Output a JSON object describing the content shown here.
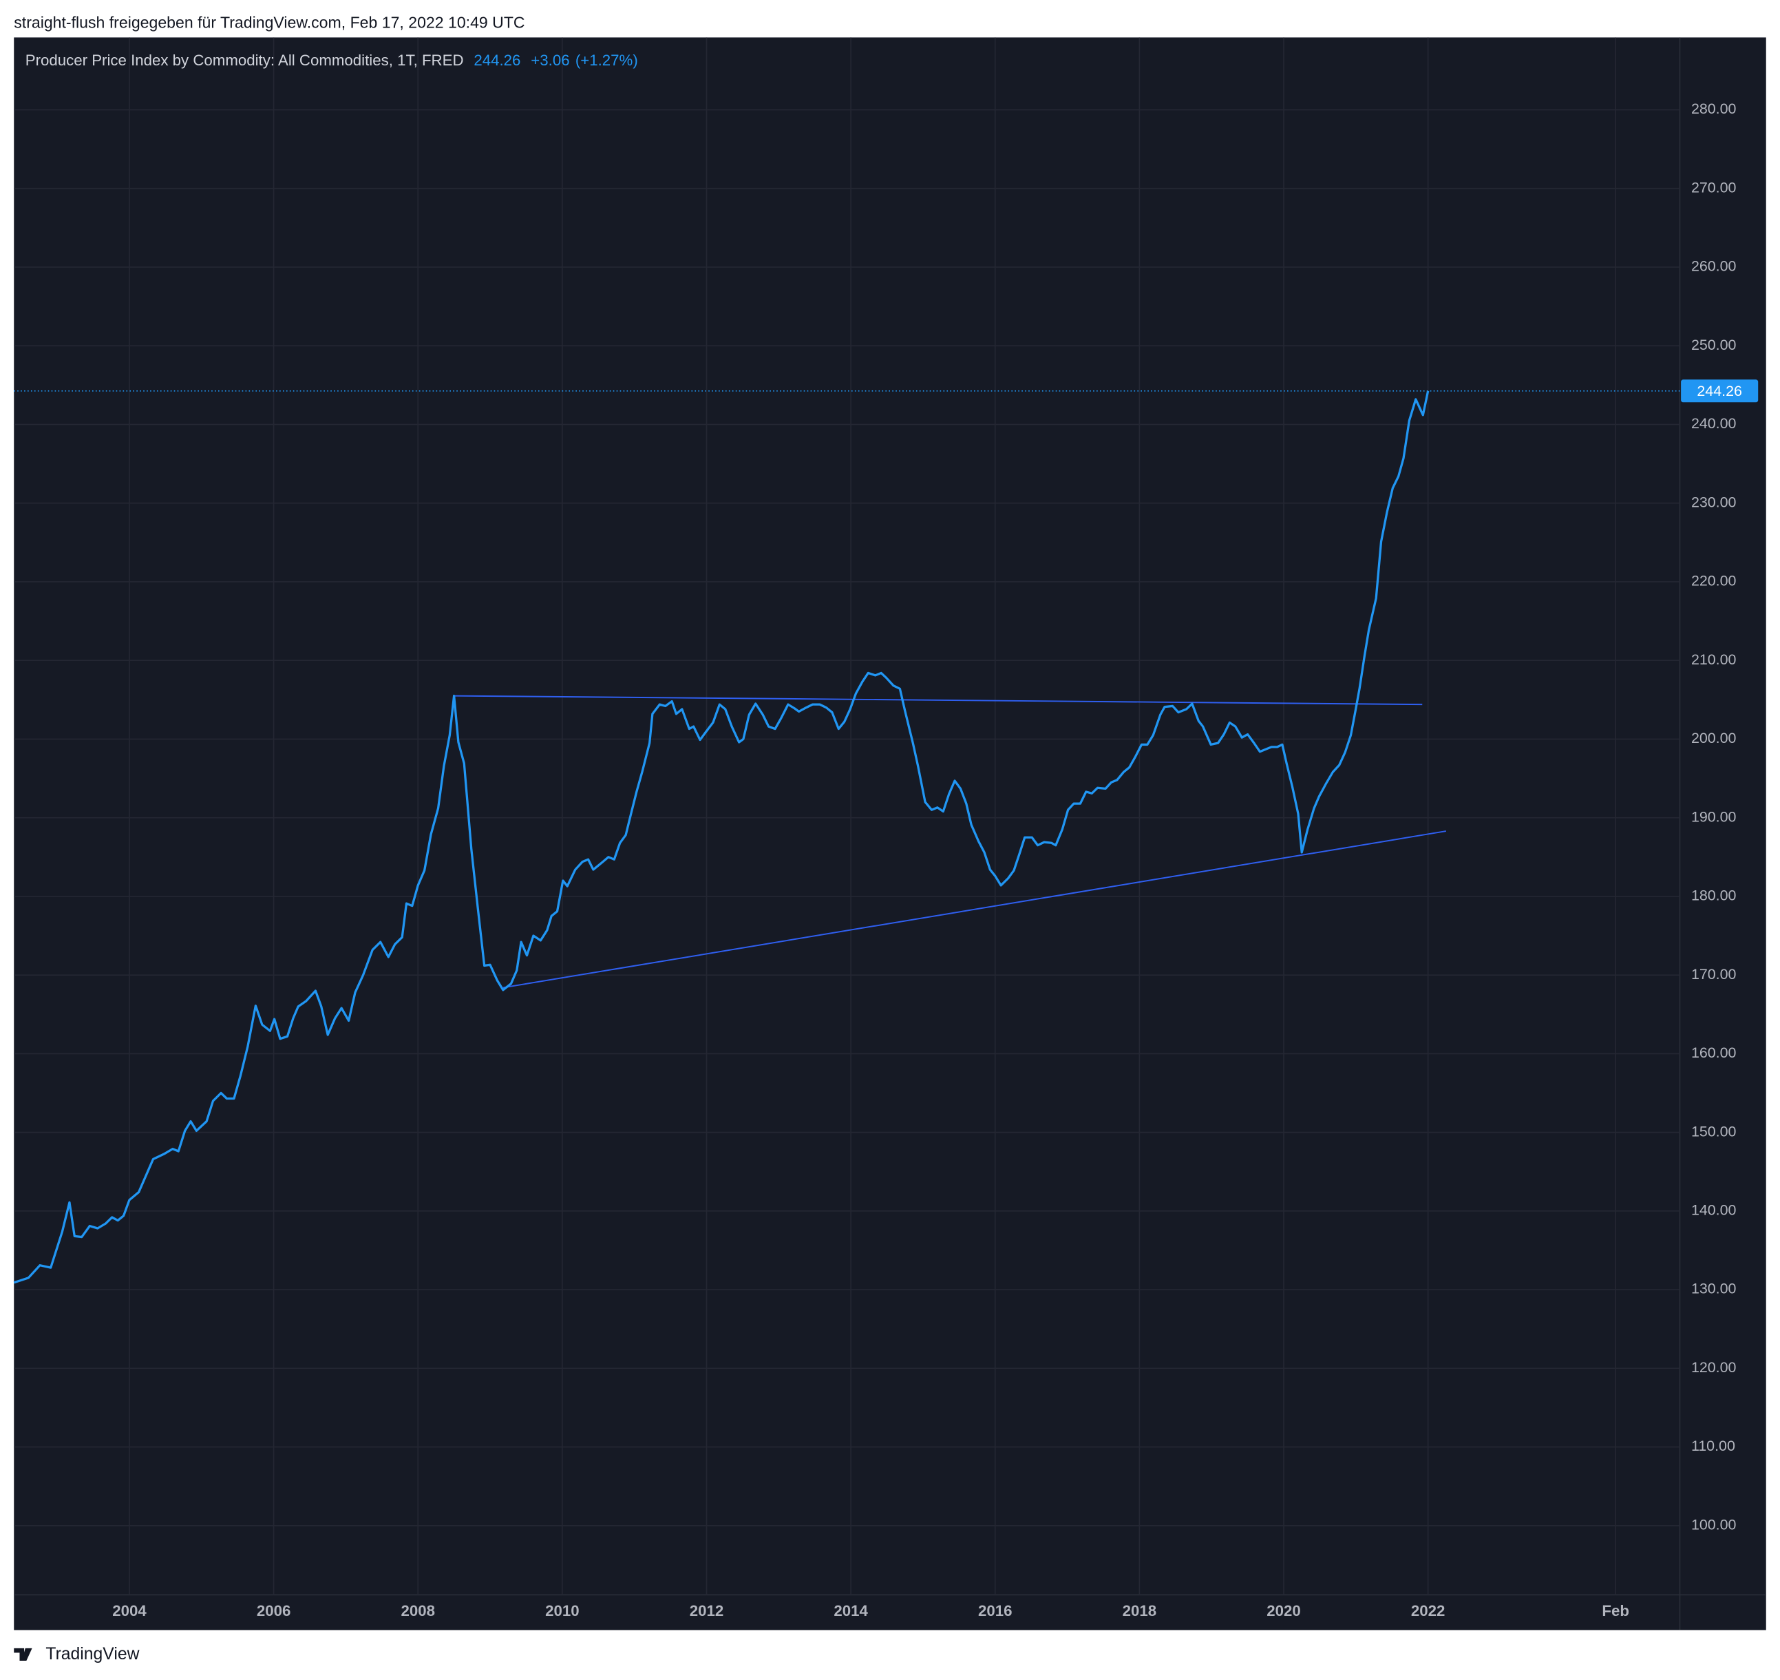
{
  "chart_data": {
    "type": "line",
    "source_note": "straight-flush freigegeben für TradingView.com, Feb 17, 2022 10:49 UTC",
    "title": "Producer Price Index by Commodity: All Commodities, 1T, FRED",
    "last_value": 244.26,
    "change": {
      "value": 3.06,
      "label": "+3.06"
    },
    "change_pct": {
      "value": 1.27,
      "label": "(+1.27%)"
    },
    "brand": "TradingView",
    "grid": true,
    "xlim": [
      2002.4,
      2025.49
    ],
    "ylim": [
      91.2,
      289.2
    ],
    "xticks": [
      2004,
      2006,
      2008,
      2010,
      2012,
      2014,
      2016,
      2018,
      2020,
      2022,
      {
        "value": 2024.6,
        "label": "Feb"
      }
    ],
    "yticks": [
      {
        "value": 100,
        "label": "100.00"
      },
      {
        "value": 110,
        "label": "110.00"
      },
      {
        "value": 120,
        "label": "120.00"
      },
      {
        "value": 130,
        "label": "130.00"
      },
      {
        "value": 140,
        "label": "140.00"
      },
      {
        "value": 150,
        "label": "150.00"
      },
      {
        "value": 160,
        "label": "160.00"
      },
      {
        "value": 170,
        "label": "170.00"
      },
      {
        "value": 180,
        "label": "180.00"
      },
      {
        "value": 190,
        "label": "190.00"
      },
      {
        "value": 200,
        "label": "200.00"
      },
      {
        "value": 210,
        "label": "210.00"
      },
      {
        "value": 220,
        "label": "220.00"
      },
      {
        "value": 230,
        "label": "230.00"
      },
      {
        "value": 240,
        "label": "240.00"
      },
      {
        "value": 250,
        "label": "250.00"
      },
      {
        "value": 260,
        "label": "260.00"
      },
      {
        "value": 270,
        "label": "270.00"
      },
      {
        "value": 280,
        "label": "280.00"
      }
    ],
    "trendline_color": "#2f5ff0",
    "trendlines": [
      {
        "x": [
          2008.5,
          2021.92
        ],
        "values": [
          205.5,
          204.4
        ]
      },
      {
        "x": [
          2009.18,
          2022.25
        ],
        "values": [
          168.4,
          188.3
        ]
      }
    ],
    "series": [
      {
        "color": "#2196f3",
        "x": [
          2002.4,
          2002.6,
          2002.76,
          2002.91,
          2003.07,
          2003.17,
          2003.24,
          2003.34,
          2003.45,
          2003.56,
          2003.67,
          2003.76,
          2003.84,
          2003.92,
          2004.0,
          2004.13,
          2004.33,
          2004.49,
          2004.6,
          2004.68,
          2004.77,
          2004.85,
          2004.93,
          2005.07,
          2005.16,
          2005.27,
          2005.35,
          2005.45,
          2005.54,
          2005.64,
          2005.75,
          2005.84,
          2005.95,
          2006.01,
          2006.09,
          2006.19,
          2006.27,
          2006.34,
          2006.45,
          2006.58,
          2006.66,
          2006.75,
          2006.85,
          2006.94,
          2007.04,
          2007.13,
          2007.24,
          2007.37,
          2007.48,
          2007.59,
          2007.68,
          2007.78,
          2007.84,
          2007.92,
          2008.0,
          2008.09,
          2008.18,
          2008.28,
          2008.36,
          2008.44,
          2008.5,
          2008.56,
          2008.64,
          2008.74,
          2008.83,
          2008.92,
          2009.0,
          2009.1,
          2009.18,
          2009.29,
          2009.37,
          2009.43,
          2009.51,
          2009.6,
          2009.7,
          2009.79,
          2009.85,
          2009.93,
          2010.01,
          2010.07,
          2010.18,
          2010.28,
          2010.36,
          2010.43,
          2010.55,
          2010.64,
          2010.72,
          2010.8,
          2010.88,
          2010.95,
          2011.03,
          2011.11,
          2011.21,
          2011.25,
          2011.35,
          2011.43,
          2011.52,
          2011.58,
          2011.66,
          2011.76,
          2011.82,
          2011.91,
          2011.99,
          2012.09,
          2012.18,
          2012.26,
          2012.35,
          2012.45,
          2012.51,
          2012.59,
          2012.68,
          2012.78,
          2012.86,
          2012.95,
          2013.03,
          2013.13,
          2013.22,
          2013.28,
          2013.38,
          2013.47,
          2013.57,
          2013.66,
          2013.74,
          2013.83,
          2013.91,
          2013.99,
          2014.07,
          2014.16,
          2014.24,
          2014.34,
          2014.42,
          2014.49,
          2014.59,
          2014.68,
          2014.75,
          2014.86,
          2014.93,
          2015.03,
          2015.12,
          2015.2,
          2015.28,
          2015.36,
          2015.44,
          2015.52,
          2015.6,
          2015.67,
          2015.77,
          2015.85,
          2015.93,
          2016.0,
          2016.08,
          2016.18,
          2016.26,
          2016.34,
          2016.41,
          2016.51,
          2016.59,
          2016.68,
          2016.78,
          2016.84,
          2016.93,
          2017.01,
          2017.09,
          2017.18,
          2017.26,
          2017.34,
          2017.42,
          2017.53,
          2017.61,
          2017.69,
          2017.78,
          2017.86,
          2017.94,
          2018.03,
          2018.11,
          2018.19,
          2018.29,
          2018.35,
          2018.46,
          2018.54,
          2018.65,
          2018.73,
          2018.82,
          2018.88,
          2018.99,
          2019.09,
          2019.17,
          2019.25,
          2019.33,
          2019.42,
          2019.5,
          2019.58,
          2019.67,
          2019.75,
          2019.83,
          2019.91,
          2019.98,
          2020.04,
          2020.12,
          2020.2,
          2020.25,
          2020.33,
          2020.42,
          2020.49,
          2020.59,
          2020.68,
          2020.77,
          2020.85,
          2020.93,
          2020.99,
          2021.05,
          2021.12,
          2021.18,
          2021.28,
          2021.35,
          2021.43,
          2021.51,
          2021.59,
          2021.66,
          2021.74,
          2021.83,
          2021.93,
          2022.0
        ],
        "values": [
          130.9,
          131.5,
          133.1,
          132.8,
          137.4,
          141.1,
          136.8,
          136.7,
          138.1,
          137.8,
          138.4,
          139.2,
          138.8,
          139.4,
          141.4,
          142.4,
          146.6,
          147.3,
          147.9,
          147.6,
          150.2,
          151.4,
          150.2,
          151.4,
          154.0,
          155.0,
          154.3,
          154.3,
          157.2,
          160.9,
          166.1,
          163.7,
          162.9,
          164.4,
          161.9,
          162.2,
          164.5,
          166.0,
          166.7,
          168.0,
          166.0,
          162.4,
          164.5,
          165.8,
          164.2,
          167.8,
          170.0,
          173.2,
          174.2,
          172.3,
          173.9,
          174.8,
          179.1,
          178.8,
          181.4,
          183.3,
          187.9,
          191.2,
          196.6,
          200.5,
          205.5,
          199.6,
          196.9,
          186.0,
          178.5,
          171.2,
          171.3,
          169.3,
          168.1,
          168.9,
          170.6,
          174.2,
          172.5,
          175.0,
          174.4,
          175.7,
          177.5,
          178.1,
          182.0,
          181.3,
          183.4,
          184.4,
          184.7,
          183.4,
          184.3,
          185.0,
          184.7,
          186.8,
          187.8,
          190.4,
          193.3,
          195.9,
          199.5,
          203.2,
          204.4,
          204.2,
          204.8,
          203.2,
          203.8,
          201.3,
          201.6,
          199.9,
          200.9,
          202.1,
          204.4,
          203.8,
          201.6,
          199.6,
          200.0,
          203.1,
          204.5,
          203.1,
          201.6,
          201.3,
          202.6,
          204.4,
          203.9,
          203.5,
          204.0,
          204.4,
          204.4,
          204.0,
          203.4,
          201.3,
          202.2,
          203.8,
          205.8,
          207.3,
          208.4,
          208.1,
          208.4,
          207.8,
          206.8,
          206.4,
          203.6,
          199.5,
          196.6,
          192.0,
          191.0,
          191.3,
          190.8,
          193.0,
          194.7,
          193.7,
          191.8,
          189.1,
          187.0,
          185.6,
          183.4,
          182.6,
          181.4,
          182.3,
          183.3,
          185.5,
          187.5,
          187.5,
          186.5,
          186.9,
          186.8,
          186.5,
          188.5,
          191.0,
          191.8,
          191.8,
          193.3,
          193.1,
          193.8,
          193.7,
          194.5,
          194.8,
          195.8,
          196.4,
          197.7,
          199.3,
          199.3,
          200.5,
          203.1,
          204.1,
          204.2,
          203.4,
          203.8,
          204.5,
          202.3,
          201.6,
          199.3,
          199.5,
          200.6,
          202.1,
          201.6,
          200.2,
          200.6,
          199.6,
          198.4,
          198.7,
          199.0,
          199.0,
          199.3,
          196.9,
          193.9,
          190.5,
          185.6,
          188.5,
          191.2,
          192.7,
          194.4,
          195.8,
          196.7,
          198.3,
          200.5,
          203.4,
          206.4,
          210.6,
          213.9,
          217.9,
          225.1,
          228.8,
          231.9,
          233.4,
          235.7,
          240.5,
          243.2,
          241.2,
          244.26
        ]
      }
    ]
  }
}
